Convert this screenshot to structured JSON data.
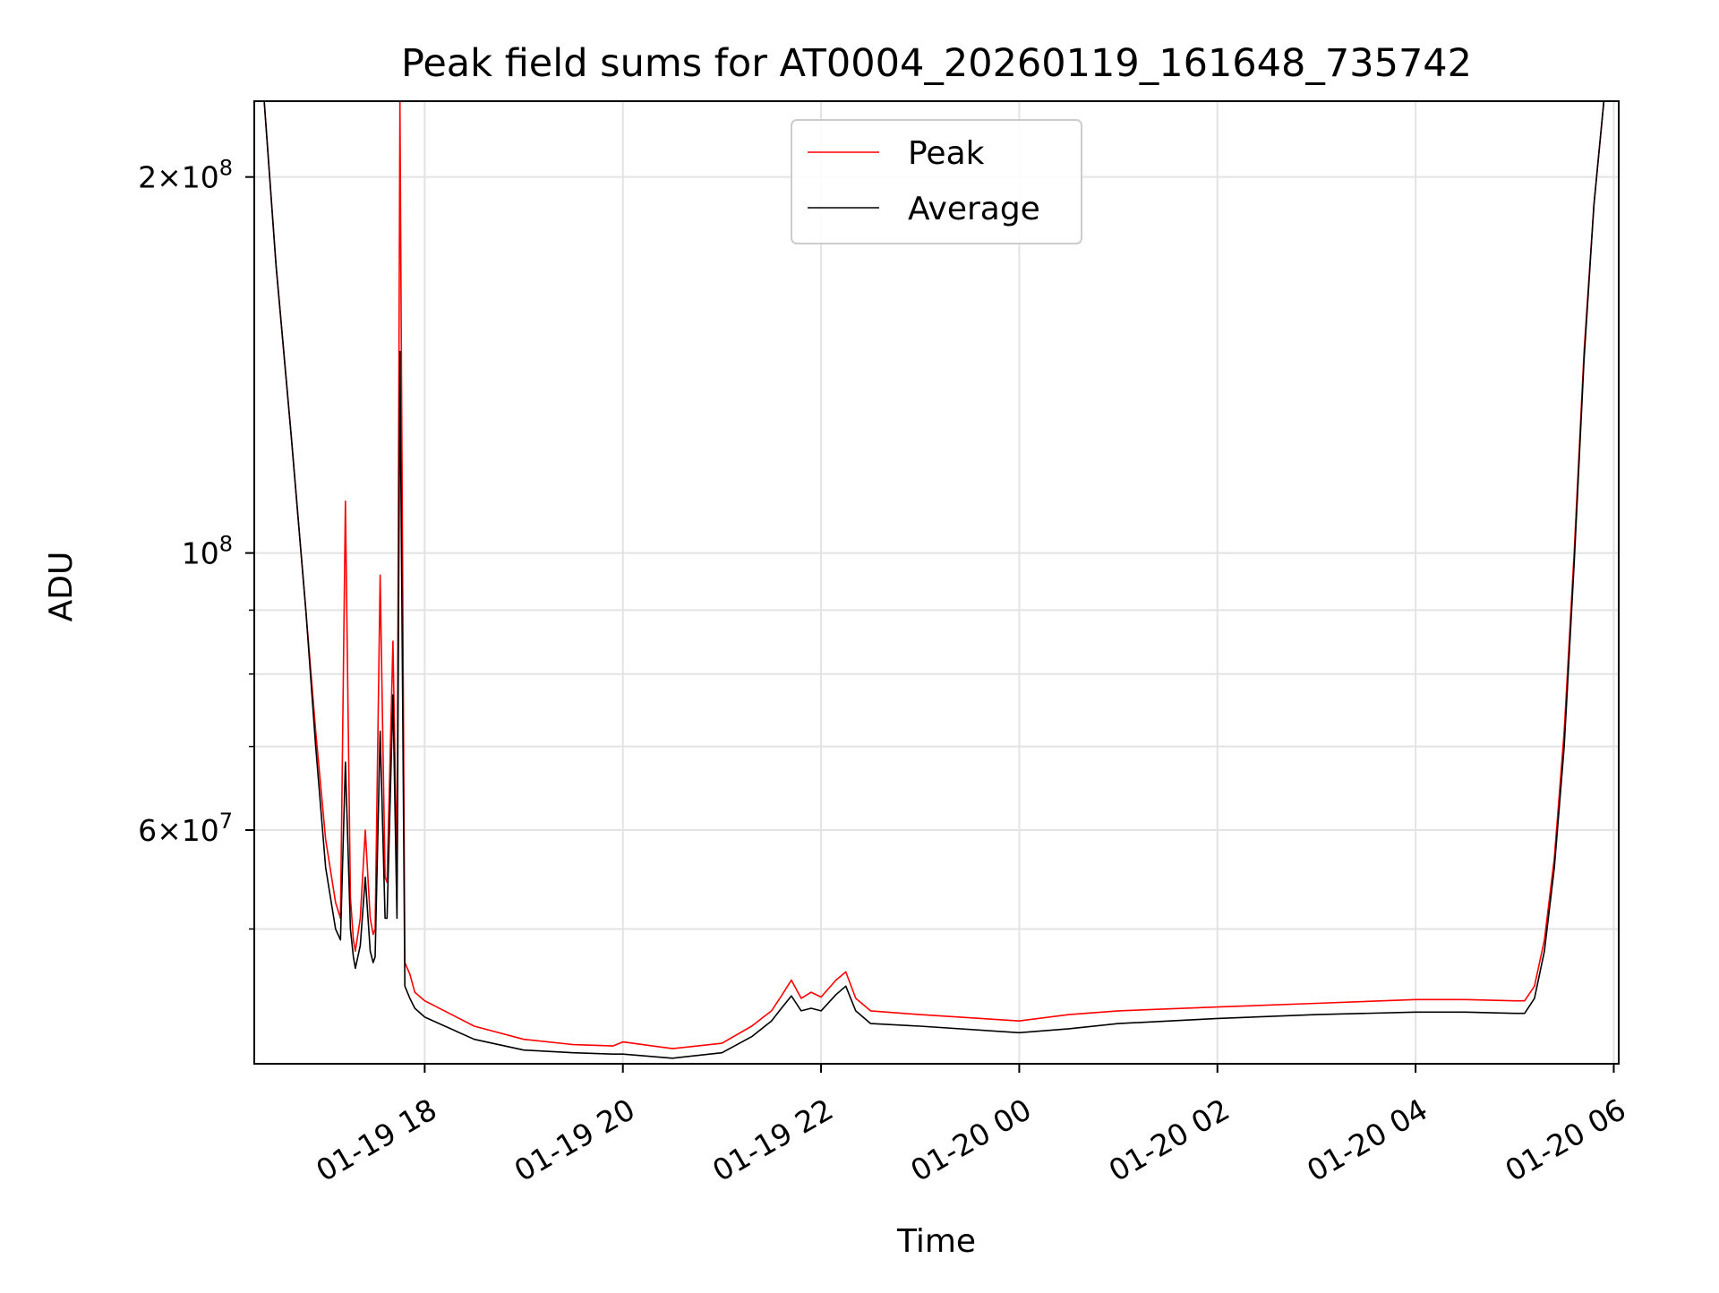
{
  "chart_data": {
    "type": "line",
    "title": "Peak field sums for AT0004_20260119_161648_735742",
    "xlabel": "Time",
    "ylabel": "ADU",
    "yscale": "log",
    "grid": true,
    "legend_position": "top-center",
    "x_unit": "hours since 2026-01-19 00:00",
    "xlim": [
      16.28,
      30.05
    ],
    "ylim": [
      39000000.0,
      230000000.0
    ],
    "x_ticks": [
      {
        "value": 18,
        "label": "01-19 18"
      },
      {
        "value": 20,
        "label": "01-19 20"
      },
      {
        "value": 22,
        "label": "01-19 22"
      },
      {
        "value": 24,
        "label": "01-20 00"
      },
      {
        "value": 26,
        "label": "01-20 02"
      },
      {
        "value": 28,
        "label": "01-20 04"
      },
      {
        "value": 30,
        "label": "01-20 06"
      }
    ],
    "y_major_ticks": [
      {
        "value": 200000000,
        "mantissa": "2",
        "exponent": "8"
      },
      {
        "value": 100000000,
        "mantissa": "",
        "exponent": "8"
      },
      {
        "value": 60000000,
        "mantissa": "6",
        "exponent": "7"
      }
    ],
    "y_minor_ticks": [
      50000000,
      70000000,
      80000000,
      90000000
    ],
    "series": [
      {
        "name": "Peak",
        "color": "#ff0000",
        "x": [
          16.28,
          16.38,
          16.5,
          16.65,
          16.8,
          16.9,
          17.0,
          17.1,
          17.15,
          17.2,
          17.25,
          17.28,
          17.3,
          17.35,
          17.4,
          17.45,
          17.48,
          17.5,
          17.55,
          17.6,
          17.62,
          17.68,
          17.72,
          17.75,
          17.8,
          17.85,
          17.9,
          18.0,
          18.5,
          19.0,
          19.5,
          19.9,
          20.0,
          20.5,
          21.0,
          21.3,
          21.5,
          21.6,
          21.7,
          21.8,
          21.9,
          22.0,
          22.15,
          22.25,
          22.35,
          22.5,
          23.0,
          24.0,
          24.5,
          25.0,
          26.0,
          27.0,
          28.0,
          28.5,
          29.0,
          29.1,
          29.2,
          29.3,
          29.4,
          29.5,
          29.6,
          29.7,
          29.8,
          29.9,
          30.05
        ],
        "y": [
          230000000.0,
          230000000.0,
          170000000.0,
          125000000.0,
          90000000.0,
          72000000.0,
          59000000.0,
          52500000.0,
          51000000.0,
          110000000.0,
          53000000.0,
          49000000.0,
          48000000.0,
          51000000.0,
          60000000.0,
          51000000.0,
          49500000.0,
          50000000.0,
          96000000.0,
          55000000.0,
          54500000.0,
          85000000.0,
          55000000.0,
          230000000.0,
          47000000.0,
          46000000.0,
          44500000.0,
          43800000.0,
          41800000.0,
          40800000.0,
          40400000.0,
          40300000.0,
          40600000.0,
          40100000.0,
          40500000.0,
          41800000.0,
          43000000.0,
          44200000.0,
          45500000.0,
          44000000.0,
          44500000.0,
          44100000.0,
          45500000.0,
          46200000.0,
          44000000.0,
          43000000.0,
          42700000.0,
          42200000.0,
          42700000.0,
          43000000.0,
          43300000.0,
          43600000.0,
          43900000.0,
          43900000.0,
          43800000.0,
          43800000.0,
          45000000.0,
          49000000.0,
          57000000.0,
          72000000.0,
          100000000.0,
          145000000.0,
          190000000.0,
          230000000.0,
          230000000.0
        ]
      },
      {
        "name": "Average",
        "color": "#000000",
        "x": [
          16.28,
          16.38,
          16.5,
          16.65,
          16.8,
          16.9,
          17.0,
          17.1,
          17.15,
          17.2,
          17.25,
          17.28,
          17.3,
          17.35,
          17.4,
          17.45,
          17.48,
          17.5,
          17.55,
          17.6,
          17.62,
          17.68,
          17.72,
          17.75,
          17.8,
          17.85,
          17.9,
          18.0,
          18.5,
          19.0,
          19.5,
          19.9,
          20.0,
          20.5,
          21.0,
          21.3,
          21.5,
          21.6,
          21.7,
          21.8,
          21.9,
          22.0,
          22.15,
          22.25,
          22.35,
          22.5,
          23.0,
          24.0,
          24.5,
          25.0,
          26.0,
          27.0,
          28.0,
          28.5,
          29.0,
          29.1,
          29.2,
          29.3,
          29.4,
          29.5,
          29.6,
          29.7,
          29.8,
          29.9,
          30.05
        ],
        "y": [
          230000000.0,
          230000000.0,
          170000000.0,
          125000000.0,
          90000000.0,
          70000000.0,
          56000000.0,
          50000000.0,
          49000000.0,
          68000000.0,
          50000000.0,
          47500000.0,
          46500000.0,
          48500000.0,
          55000000.0,
          48000000.0,
          47000000.0,
          47500000.0,
          72000000.0,
          51000000.0,
          51000000.0,
          77000000.0,
          51000000.0,
          145000000.0,
          45000000.0,
          44000000.0,
          43200000.0,
          42500000.0,
          40800000.0,
          40000000.0,
          39800000.0,
          39700000.0,
          39700000.0,
          39400000.0,
          39800000.0,
          41000000.0,
          42200000.0,
          43200000.0,
          44200000.0,
          43000000.0,
          43200000.0,
          43000000.0,
          44300000.0,
          45000000.0,
          43000000.0,
          42000000.0,
          41800000.0,
          41300000.0,
          41600000.0,
          42000000.0,
          42400000.0,
          42700000.0,
          42900000.0,
          42900000.0,
          42800000.0,
          42800000.0,
          44000000.0,
          48000000.0,
          56000000.0,
          70000000.0,
          98000000.0,
          143000000.0,
          190000000.0,
          230000000.0,
          230000000.0
        ]
      }
    ]
  }
}
